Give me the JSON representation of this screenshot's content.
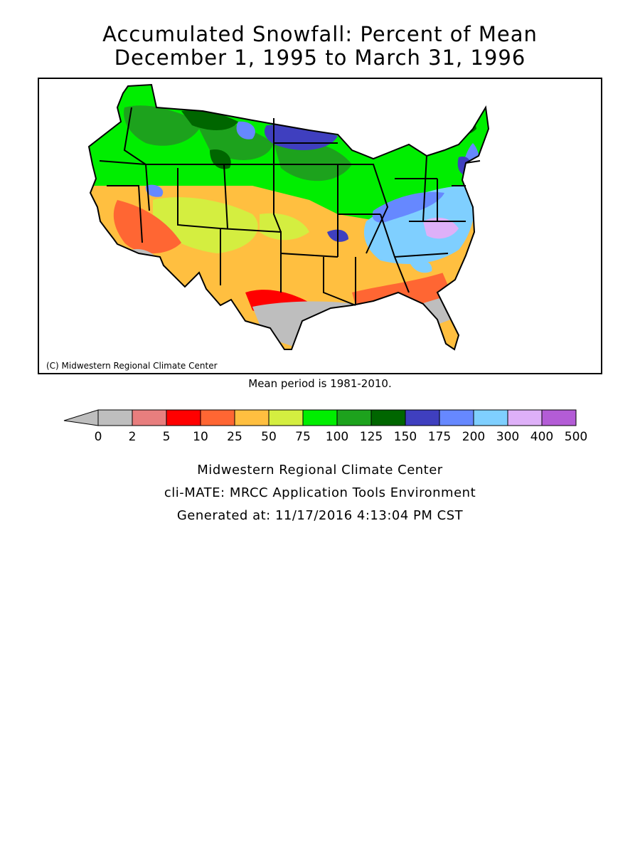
{
  "title": {
    "line1": "Accumulated Snowfall: Percent of Mean",
    "line2": "December 1, 1995 to March 31, 1996"
  },
  "map": {
    "copyright": "(C) Midwestern Regional Climate Center",
    "mean_note": "Mean period is 1981-2010."
  },
  "legend": {
    "boundaries": [
      "0",
      "2",
      "5",
      "10",
      "25",
      "50",
      "75",
      "100",
      "125",
      "150",
      "175",
      "200",
      "300",
      "400",
      "500"
    ],
    "colors": [
      "#bebebe",
      "#e87e7e",
      "#ff0000",
      "#ff6633",
      "#ffbf40",
      "#d4ee40",
      "#00ee00",
      "#1da21d",
      "#006600",
      "#3f3fbf",
      "#6688ff",
      "#7fcfff",
      "#deb0f8",
      "#b35cd6"
    ],
    "below_color": "#bebebe"
  },
  "footer": {
    "line1": "Midwestern Regional Climate Center",
    "line2": "cli-MATE: MRCC Application Tools Environment",
    "line3": "Generated at: 11/17/2016 4:13:04 PM CST"
  }
}
